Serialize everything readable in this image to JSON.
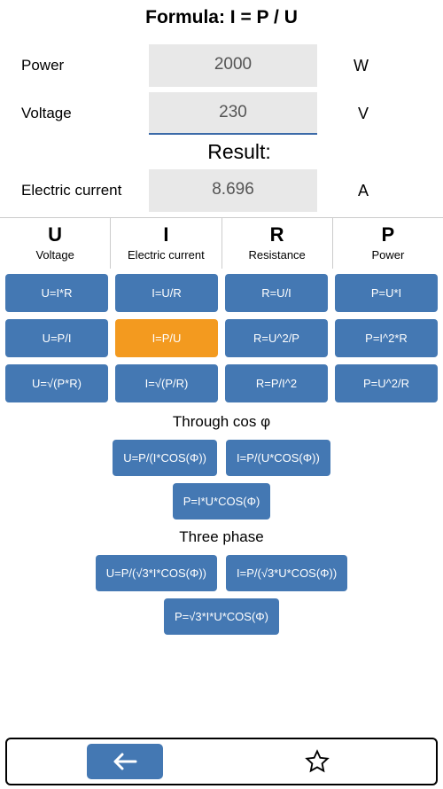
{
  "formula_title": "Formula: I = P / U",
  "inputs": [
    {
      "label": "Power",
      "value": "2000",
      "unit": "W",
      "active": false
    },
    {
      "label": "Voltage",
      "value": "230",
      "unit": "V",
      "active": true
    }
  ],
  "result_heading": "Result:",
  "result": {
    "label": "Electric current",
    "value": "8.696",
    "unit": "A"
  },
  "columns": [
    {
      "symbol": "U",
      "name": "Voltage"
    },
    {
      "symbol": "I",
      "name": "Electric current"
    },
    {
      "symbol": "R",
      "name": "Resistance"
    },
    {
      "symbol": "P",
      "name": "Power"
    }
  ],
  "grid": [
    [
      "U=I*R",
      "I=U/R",
      "R=U/I",
      "P=U*I"
    ],
    [
      "U=P/I",
      "I=P/U",
      "R=U^2/P",
      "P=I^2*R"
    ],
    [
      "U=√(P*R)",
      "I=√(P/R)",
      "R=P/I^2",
      "P=U^2/R"
    ]
  ],
  "selected_index": [
    1,
    1
  ],
  "cosphi_heading": "Through cos φ",
  "cosphi_row1": [
    "U=P/(I*COS(Φ))",
    "I=P/(U*COS(Φ))"
  ],
  "cosphi_row2": [
    "P=I*U*COS(Φ)"
  ],
  "three_heading": "Three phase",
  "three_row1": [
    "U=P/(√3*I*COS(Φ))",
    "I=P/(√3*U*COS(Φ))"
  ],
  "three_row2": [
    "P=√3*I*U*COS(Φ)"
  ],
  "colors": {
    "button_bg": "#4478b3",
    "selected_bg": "#f39a1f",
    "input_bg": "#e8e8e8",
    "active_underline": "#3b6aa8"
  }
}
